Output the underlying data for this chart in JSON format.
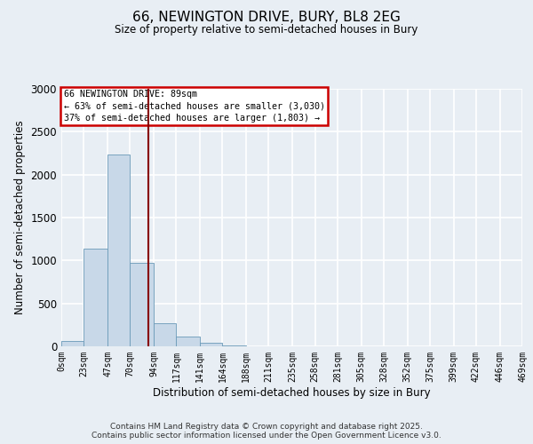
{
  "title": "66, NEWINGTON DRIVE, BURY, BL8 2EG",
  "subtitle": "Size of property relative to semi-detached houses in Bury",
  "xlabel": "Distribution of semi-detached houses by size in Bury",
  "ylabel": "Number of semi-detached properties",
  "footnote1": "Contains HM Land Registry data © Crown copyright and database right 2025.",
  "footnote2": "Contains public sector information licensed under the Open Government Licence v3.0.",
  "bin_edges": [
    0,
    23,
    47,
    70,
    94,
    117,
    141,
    164,
    188,
    211,
    235,
    258,
    281,
    305,
    328,
    352,
    375,
    399,
    422,
    446,
    469
  ],
  "bin_labels": [
    "0sqm",
    "23sqm",
    "47sqm",
    "70sqm",
    "94sqm",
    "117sqm",
    "141sqm",
    "164sqm",
    "188sqm",
    "211sqm",
    "235sqm",
    "258sqm",
    "281sqm",
    "305sqm",
    "328sqm",
    "352sqm",
    "375sqm",
    "399sqm",
    "422sqm",
    "446sqm",
    "469sqm"
  ],
  "bar_values": [
    60,
    1140,
    2230,
    970,
    265,
    110,
    45,
    10,
    3,
    1,
    0,
    0,
    0,
    0,
    0,
    0,
    0,
    0,
    0,
    0
  ],
  "bar_color": "#c8d8e8",
  "bar_edge_color": "#6a9ab8",
  "vline_x": 89,
  "vline_color": "#880000",
  "annotation_title": "66 NEWINGTON DRIVE: 89sqm",
  "annotation_line1": "← 63% of semi-detached houses are smaller (3,030)",
  "annotation_line2": "37% of semi-detached houses are larger (1,803) →",
  "annotation_box_color": "#cc0000",
  "ylim": [
    0,
    3000
  ],
  "background_color": "#e8eef4",
  "plot_background": "#e8eef4",
  "grid_color": "#ffffff",
  "yticks": [
    0,
    500,
    1000,
    1500,
    2000,
    2500,
    3000
  ]
}
